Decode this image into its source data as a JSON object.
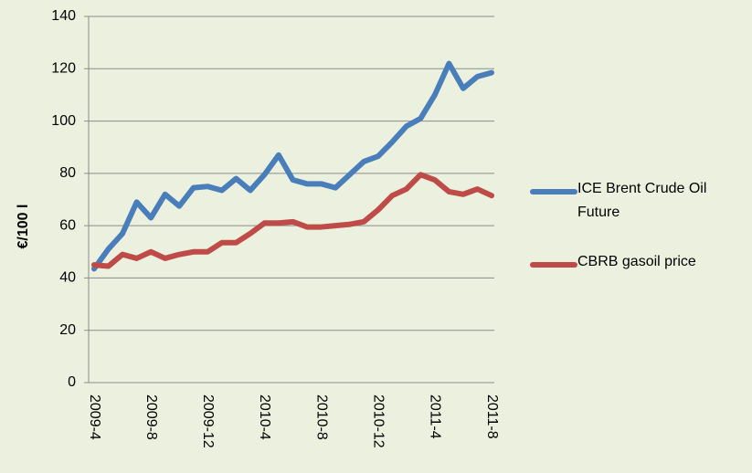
{
  "chart_data": {
    "type": "line",
    "y_label": "€/100 l",
    "categories": [
      "2009-4",
      null,
      null,
      null,
      "2009-8",
      null,
      null,
      null,
      "2009-12",
      null,
      null,
      null,
      "2010-4",
      null,
      null,
      null,
      "2010-8",
      null,
      null,
      null,
      "2010-12",
      null,
      null,
      null,
      "2011-4",
      null,
      null,
      null,
      "2011-8"
    ],
    "series": [
      {
        "name": "ICE Brent Crude Oil Future",
        "color": "#4a7ebb",
        "values": [
          43.5,
          51,
          57,
          69,
          63,
          72,
          67.5,
          74.5,
          75,
          73.5,
          78,
          73.5,
          79.5,
          87,
          77.5,
          76,
          76,
          74.5,
          79.5,
          84.5,
          86.5,
          92,
          98,
          101,
          110,
          122,
          112.5,
          117,
          118.5
        ]
      },
      {
        "name": "CBRB gasoil price",
        "color": "#be4b48",
        "values": [
          45,
          44.5,
          49,
          47.5,
          50,
          47.5,
          49,
          50,
          50,
          53.5,
          53.5,
          57,
          61,
          61,
          61.5,
          59.5,
          59.5,
          60,
          60.5,
          61.5,
          66,
          71.5,
          74,
          79.5,
          77.5,
          73,
          72,
          74,
          71.5
        ]
      }
    ],
    "ylim": [
      0,
      140
    ],
    "yticks": [
      0,
      20,
      40,
      60,
      80,
      100,
      120,
      140
    ],
    "grid": true,
    "legend": "right"
  }
}
